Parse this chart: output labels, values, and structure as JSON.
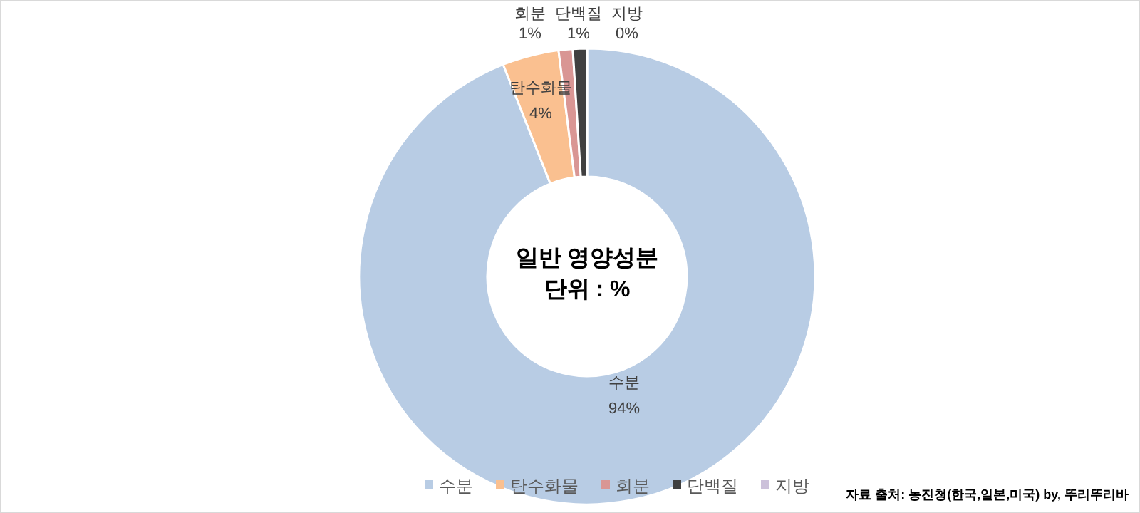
{
  "chart_data": {
    "type": "donut",
    "title": "일반 영양성분",
    "subtitle": "단위 : %",
    "categories": [
      "수분",
      "탄수화물",
      "회분",
      "단백질",
      "지방"
    ],
    "values": [
      94,
      4,
      1,
      1,
      0
    ],
    "colors": [
      "#b8cce4",
      "#fac090",
      "#d99694",
      "#404040",
      "#ccc1da"
    ],
    "value_labels": [
      "94%",
      "4%",
      "1%",
      "1%",
      "0%"
    ],
    "legend": "bottom",
    "annotations": [
      "자료 출처: 농진청(한국,일본,미국) by, 뚜리뚜리바"
    ]
  }
}
